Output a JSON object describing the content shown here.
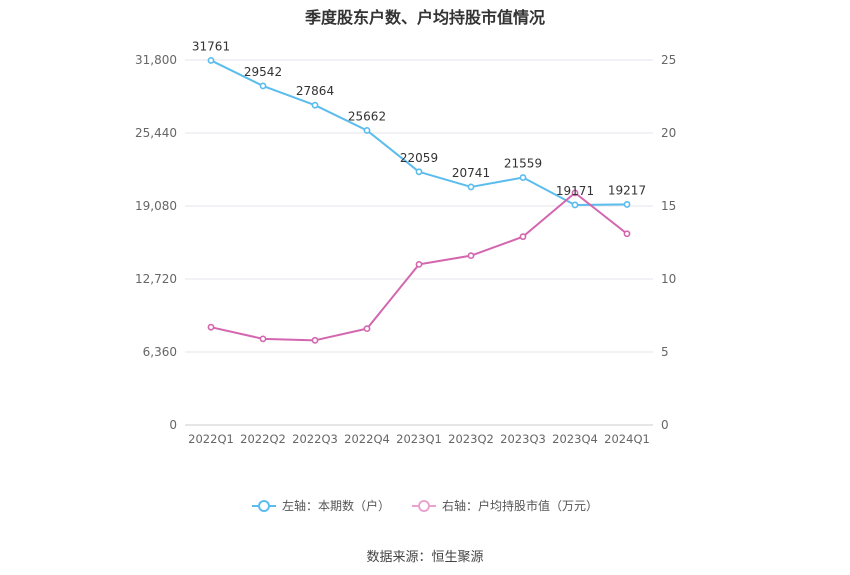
{
  "chart_data": {
    "type": "line",
    "title": "季度股东户数、户均持股市值情况",
    "categories": [
      "2022Q1",
      "2022Q2",
      "2022Q3",
      "2022Q4",
      "2023Q1",
      "2023Q2",
      "2023Q3",
      "2023Q4",
      "2024Q1"
    ],
    "left_axis": {
      "ticks": [
        "0",
        "6,360",
        "12,720",
        "19,080",
        "25,440",
        "31,800"
      ],
      "ylim": [
        0,
        31800
      ]
    },
    "right_axis": {
      "ticks": [
        "0",
        "5",
        "10",
        "15",
        "20",
        "25"
      ],
      "ylim": [
        0,
        25
      ]
    },
    "series": [
      {
        "name": "左轴：本期数（户）",
        "axis": "left",
        "color": "#5bbcee",
        "values": [
          31761,
          29542,
          27864,
          25662,
          22059,
          20741,
          21559,
          19171,
          19217
        ],
        "labels": [
          "31761",
          "29542",
          "27864",
          "25662",
          "22059",
          "20741",
          "21559",
          "19171",
          "19217"
        ]
      },
      {
        "name": "右轴：户均持股市值（万元）",
        "axis": "right",
        "color": "#d366ae",
        "values": [
          6.7,
          5.9,
          5.8,
          6.6,
          11.0,
          11.6,
          12.9,
          15.9,
          13.1
        ]
      }
    ],
    "grid": true,
    "legend_position": "bottom"
  },
  "source_text": "数据来源：恒生聚源"
}
